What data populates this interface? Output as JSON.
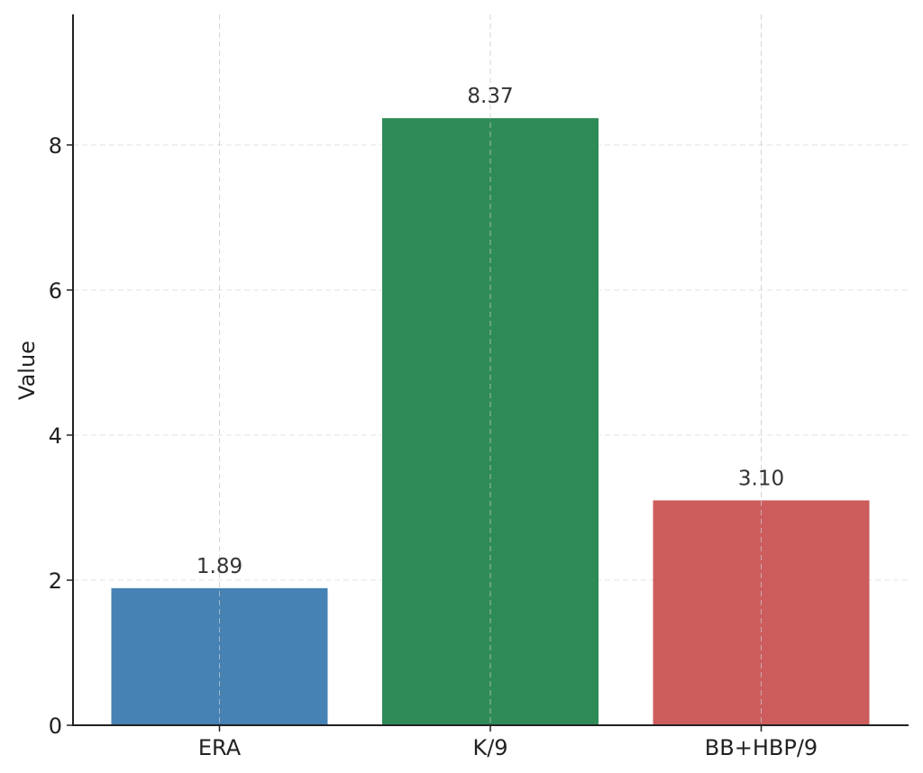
{
  "chart_data": {
    "type": "bar",
    "title": "",
    "xlabel": "",
    "ylabel": "Value",
    "categories": [
      "ERA",
      "K/9",
      "BB+HBP/9"
    ],
    "values": [
      1.89,
      8.37,
      3.1
    ],
    "value_labels": [
      "1.89",
      "8.37",
      "3.10"
    ],
    "colors": [
      "#4682b4",
      "#2e8b57",
      "#cd5c5c"
    ],
    "ylim": [
      0,
      9.8
    ],
    "yticks": [
      0,
      2,
      4,
      6,
      8
    ],
    "ytick_labels": [
      "0",
      "2",
      "4",
      "6",
      "8"
    ],
    "grid": true,
    "legend": "none"
  }
}
